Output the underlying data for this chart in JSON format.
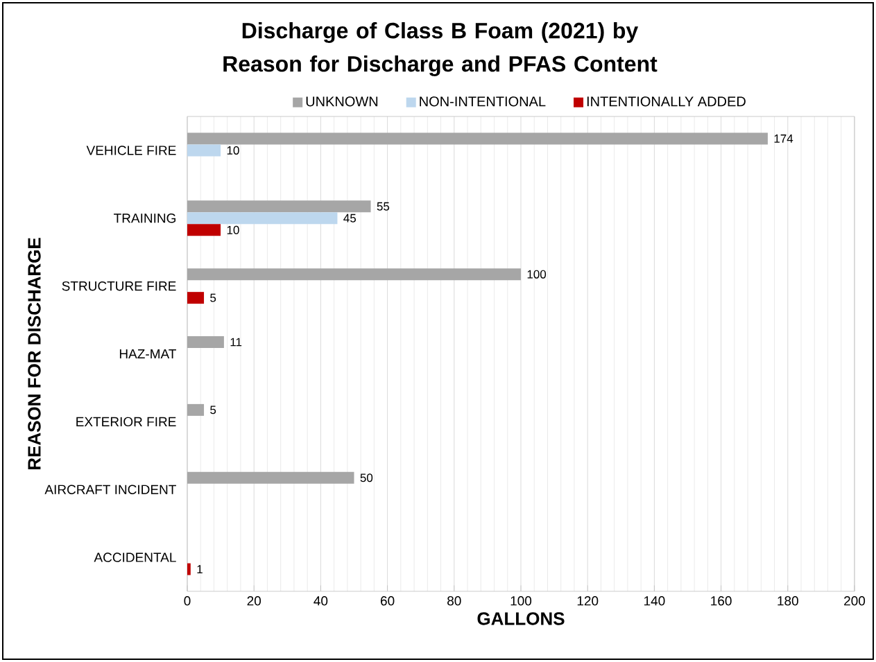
{
  "chart_data": {
    "type": "bar",
    "orientation": "horizontal",
    "title": "Discharge of Class B Foam (2021) by Reason for Discharge and PFAS Content",
    "xlabel": "GALLONS",
    "ylabel": "REASON FOR DISCHARGE",
    "categories": [
      "VEHICLE FIRE",
      "TRAINING",
      "STRUCTURE FIRE",
      "HAZ-MAT",
      "EXTERIOR FIRE",
      "AIRCRAFT INCIDENT",
      "ACCIDENTAL"
    ],
    "series": [
      {
        "name": "UNKNOWN",
        "color": "#a6a6a6",
        "values": [
          174,
          55,
          100,
          11,
          5,
          50,
          null
        ]
      },
      {
        "name": "NON-INTENTIONAL",
        "color": "#bdd7ee",
        "values": [
          10,
          45,
          null,
          null,
          null,
          null,
          null
        ]
      },
      {
        "name": "INTENTIONALLY ADDED",
        "color": "#c00000",
        "values": [
          null,
          10,
          5,
          null,
          null,
          null,
          1
        ]
      }
    ],
    "xlim": [
      0,
      200
    ],
    "xticks": [
      0,
      20,
      40,
      60,
      80,
      100,
      120,
      140,
      160,
      180,
      200
    ],
    "grid": "x",
    "legend": "top",
    "data_labels": true
  }
}
